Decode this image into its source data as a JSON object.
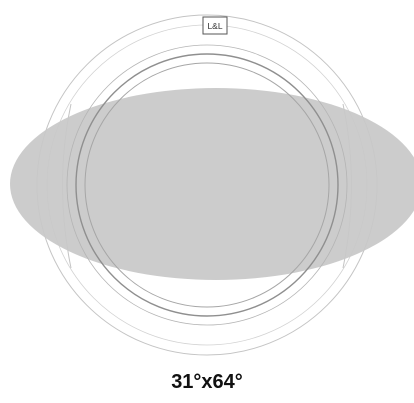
{
  "logo": {
    "text": "L&L"
  },
  "beam": {
    "label": "31°x64°",
    "horizontal_angle": 64,
    "vertical_angle": 31,
    "fill_color": "#c8c8c8"
  },
  "colors": {
    "outline": "#9a9a9a",
    "outline_light": "#c4c4c4",
    "text": "#111111"
  }
}
